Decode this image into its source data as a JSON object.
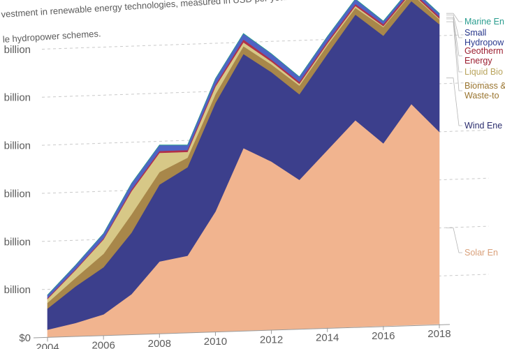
{
  "subtitle_lines": [
    "vestment in renewable energy technologies, measured in USD per year.",
    "le hydropower schemes."
  ],
  "chart_data": {
    "type": "area",
    "stacked": true,
    "x": [
      2004,
      2005,
      2006,
      2007,
      2008,
      2009,
      2010,
      2011,
      2012,
      2013,
      2014,
      2015,
      2016,
      2017,
      2018
    ],
    "x_ticks": [
      "2004",
      "2006",
      "2008",
      "2010",
      "2012",
      "2014",
      "2016",
      "2018"
    ],
    "y_ticks": [
      "$0",
      "billion",
      "billion",
      "billion",
      "billion",
      "billion",
      "billion"
    ],
    "ylim": [
      0,
      350
    ],
    "grid": "dashed horizontal",
    "legend_position": "right",
    "series": [
      {
        "name": "Solar En",
        "color": "#f1b48f",
        "values": [
          8,
          14,
          22,
          42,
          75,
          80,
          125,
          190,
          175,
          155,
          185,
          215,
          190,
          230,
          200
        ]
      },
      {
        "name": "Wind Ene",
        "color": "#3c3f8c",
        "values": [
          22,
          38,
          49,
          64,
          80,
          92,
          113,
          98,
          93,
          89,
          100,
          110,
          112,
          107,
          112
        ]
      },
      {
        "name": "Biomass & Waste-to",
        "color": "#a8874a",
        "values": [
          6,
          9,
          14,
          19,
          13,
          10,
          9,
          8,
          8,
          9,
          9,
          7,
          9,
          8,
          5
        ]
      },
      {
        "name": "Liquid Bio",
        "color": "#d7c887",
        "values": [
          4,
          8,
          15,
          24,
          20,
          6,
          8,
          4,
          3,
          2,
          2,
          2,
          1,
          1,
          1
        ]
      },
      {
        "name": "Geotherm Energy",
        "color": "#b0304a",
        "values": [
          1,
          1,
          1,
          2,
          2,
          2,
          2,
          3,
          2,
          2,
          2,
          2,
          2,
          2,
          2
        ]
      },
      {
        "name": "Small Hydropow",
        "color": "#4f63c4",
        "values": [
          3,
          4,
          5,
          6,
          6,
          5,
          6,
          6,
          6,
          5,
          5,
          5,
          3,
          3,
          3
        ]
      },
      {
        "name": "Marine En",
        "color": "#2a9d8f",
        "values": [
          0.2,
          0.2,
          0.2,
          0.3,
          0.3,
          0.3,
          0.3,
          0.3,
          0.3,
          0.3,
          0.3,
          0.3,
          0.3,
          0.3,
          0.3
        ]
      }
    ]
  },
  "legend_labels": [
    {
      "series": "Marine En",
      "lines": [
        "Marine En"
      ],
      "color": "#2a9d8f"
    },
    {
      "series": "Small Hydropow",
      "lines": [
        "Small",
        "Hydropow"
      ],
      "color": "#2b3a8f"
    },
    {
      "series": "Geotherm Energy",
      "lines": [
        "Geotherm",
        "Energy"
      ],
      "color": "#9b1d2f"
    },
    {
      "series": "Liquid Bio",
      "lines": [
        "Liquid Bio"
      ],
      "color": "#b9a45c"
    },
    {
      "series": "Biomass & Waste-to",
      "lines": [
        "Biomass &",
        "Waste-to"
      ],
      "color": "#9a7530"
    },
    {
      "series": "Wind Ene",
      "lines": [
        "Wind Ene"
      ],
      "color": "#2b2d6e"
    },
    {
      "series": "Solar En",
      "lines": [
        "Solar En"
      ],
      "color": "#d9a07a"
    }
  ]
}
